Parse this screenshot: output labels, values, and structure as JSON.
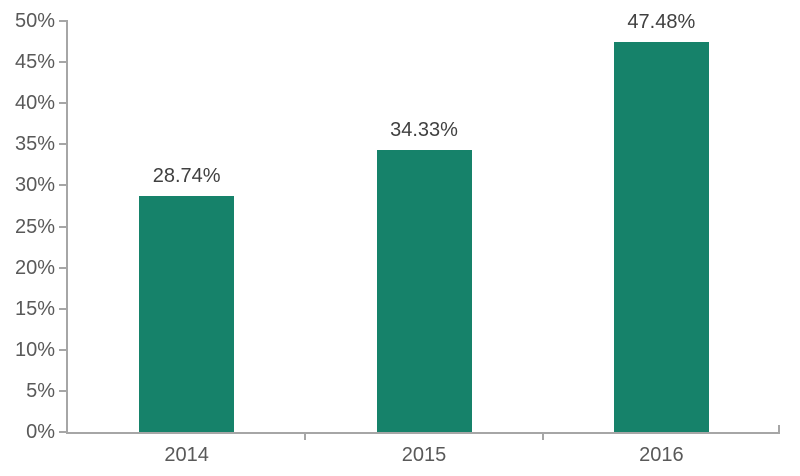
{
  "chart_data": {
    "type": "bar",
    "title": "",
    "xlabel": "",
    "ylabel": "",
    "categories": [
      "2014",
      "2015",
      "2016"
    ],
    "values": [
      28.74,
      34.33,
      47.48
    ],
    "data_labels": [
      "28.74%",
      "34.33%",
      "47.48%"
    ],
    "ylim": [
      0,
      50
    ],
    "ytick_step": 5,
    "ytick_labels": [
      "0%",
      "5%",
      "10%",
      "15%",
      "20%",
      "25%",
      "30%",
      "35%",
      "40%",
      "45%",
      "50%"
    ],
    "grid": false,
    "legend": false,
    "colors": {
      "bar": "#16826A",
      "axis": "#a6a6a6",
      "tick_label": "#595959",
      "data_label": "#404040"
    }
  }
}
